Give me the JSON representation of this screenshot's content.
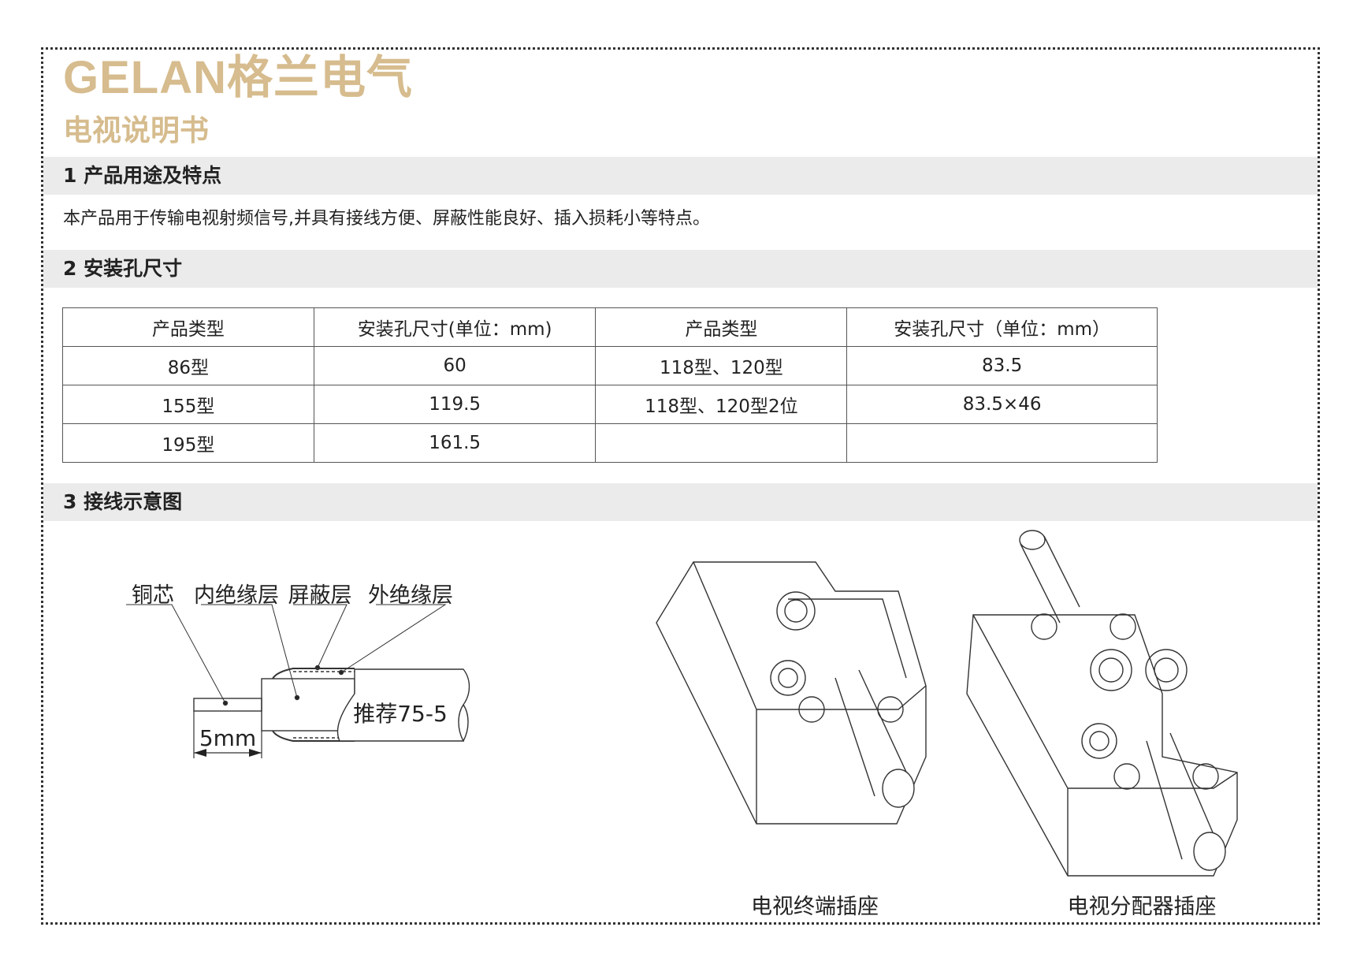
{
  "brand": {
    "logo_text": "GELAN格兰电气",
    "color": "#d6bc8e"
  },
  "doc_title": "电视说明书",
  "sections": [
    {
      "heading": "1 产品用途及特点",
      "text": "本产品用于传输电视射频信号,并具有接线方便、屏蔽性能良好、插入损耗小等特点。"
    },
    {
      "heading": "2 安装孔尺寸"
    },
    {
      "heading": "3 接线示意图"
    }
  ],
  "table": {
    "headers": [
      "产品类型",
      "安装孔尺寸(单位：mm)",
      "产品类型",
      "安装孔尺寸（单位：mm）"
    ],
    "rows": [
      [
        "86型",
        "60",
        "118型、120型",
        "83.5"
      ],
      [
        "155型",
        "119.5",
        "118型、120型2位",
        "83.5×46"
      ],
      [
        "195型",
        "161.5",
        "",
        ""
      ]
    ]
  },
  "cable_diagram": {
    "labels": [
      "铜芯",
      "内绝缘层",
      "屏蔽层",
      "外绝缘层"
    ],
    "recommend": "推荐75-5",
    "strip_length": "5mm"
  },
  "captions": [
    "电视终端插座",
    "电视分配器插座"
  ]
}
